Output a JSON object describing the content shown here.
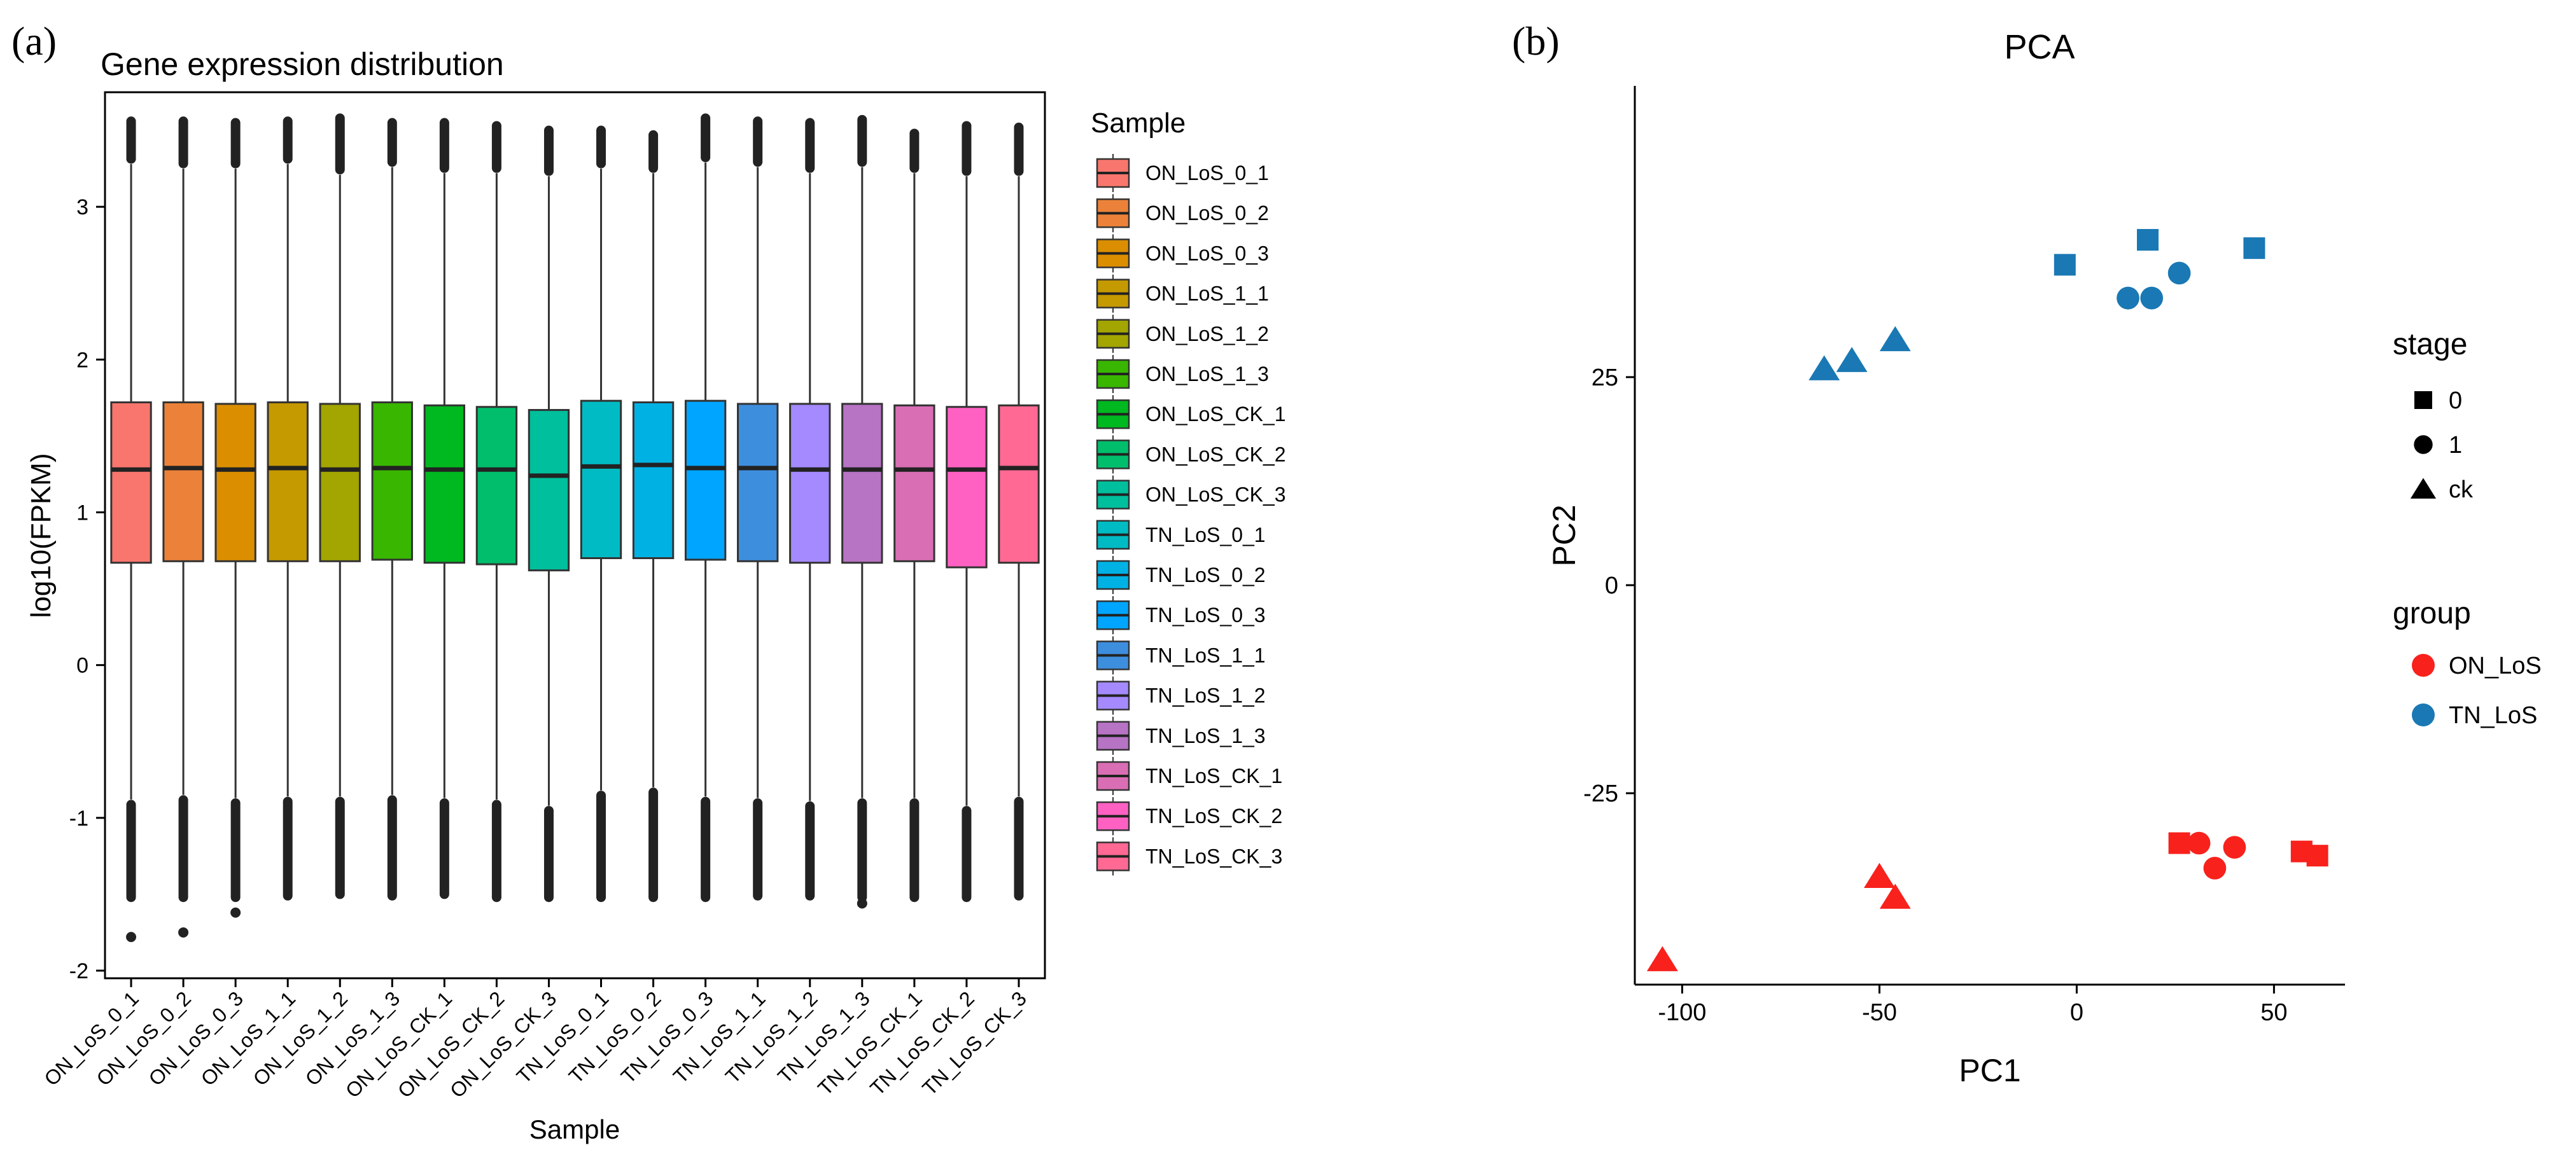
{
  "panel_a_label": "(a)",
  "panel_b_label": "(b)",
  "colors": {
    "on_los": "#F8211C",
    "tn_los": "#1A78B4",
    "axis": "#000000",
    "whisker": "#3a3a3a"
  },
  "chart_data": [
    {
      "type": "box",
      "title": "Gene expression distribution",
      "xlabel": "Sample",
      "ylabel": "log10(FPKM)",
      "ylim": [
        -2.05,
        3.75
      ],
      "yticks": [
        -2,
        -1,
        0,
        1,
        2,
        3
      ],
      "ytick_labels": [
        "-2",
        "-1",
        "0",
        "1",
        "2",
        "3"
      ],
      "legend": {
        "title": "Sample",
        "position": "right"
      },
      "samples": [
        {
          "name": "ON_LoS_0_1",
          "color": "#F8766D",
          "q1": 0.67,
          "median": 1.28,
          "q3": 1.72,
          "lower_whisker": -0.88,
          "upper_whisker": 3.28,
          "outlier_low_min": -1.78,
          "outlier_high_max": 3.56
        },
        {
          "name": "ON_LoS_0_2",
          "color": "#EC8239",
          "q1": 0.68,
          "median": 1.29,
          "q3": 1.72,
          "lower_whisker": -0.85,
          "upper_whisker": 3.25,
          "outlier_low_min": -1.75,
          "outlier_high_max": 3.56
        },
        {
          "name": "ON_LoS_0_3",
          "color": "#DB8E00",
          "q1": 0.68,
          "median": 1.28,
          "q3": 1.71,
          "lower_whisker": -0.87,
          "upper_whisker": 3.25,
          "outlier_low_min": -1.62,
          "outlier_high_max": 3.55
        },
        {
          "name": "ON_LoS_1_1",
          "color": "#C59900",
          "q1": 0.68,
          "median": 1.29,
          "q3": 1.72,
          "lower_whisker": -0.86,
          "upper_whisker": 3.28,
          "outlier_low_min": -1.51,
          "outlier_high_max": 3.56
        },
        {
          "name": "ON_LoS_1_2",
          "color": "#A3A500",
          "q1": 0.68,
          "median": 1.28,
          "q3": 1.71,
          "lower_whisker": -0.86,
          "upper_whisker": 3.21,
          "outlier_low_min": -1.5,
          "outlier_high_max": 3.58
        },
        {
          "name": "ON_LoS_1_3",
          "color": "#39B600",
          "q1": 0.69,
          "median": 1.29,
          "q3": 1.72,
          "lower_whisker": -0.85,
          "upper_whisker": 3.26,
          "outlier_low_min": -1.51,
          "outlier_high_max": 3.55
        },
        {
          "name": "ON_LoS_CK_1",
          "color": "#00B81F",
          "q1": 0.67,
          "median": 1.28,
          "q3": 1.7,
          "lower_whisker": -0.87,
          "upper_whisker": 3.22,
          "outlier_low_min": -1.5,
          "outlier_high_max": 3.55
        },
        {
          "name": "ON_LoS_CK_2",
          "color": "#00BE6C",
          "q1": 0.66,
          "median": 1.28,
          "q3": 1.69,
          "lower_whisker": -0.88,
          "upper_whisker": 3.22,
          "outlier_low_min": -1.53,
          "outlier_high_max": 3.53
        },
        {
          "name": "ON_LoS_CK_3",
          "color": "#00BF9C",
          "q1": 0.62,
          "median": 1.24,
          "q3": 1.67,
          "lower_whisker": -0.92,
          "upper_whisker": 3.2,
          "outlier_low_min": -1.53,
          "outlier_high_max": 3.5
        },
        {
          "name": "TN_LoS_0_1",
          "color": "#00BBC3",
          "q1": 0.7,
          "median": 1.3,
          "q3": 1.73,
          "lower_whisker": -0.82,
          "upper_whisker": 3.25,
          "outlier_low_min": -1.52,
          "outlier_high_max": 3.5
        },
        {
          "name": "TN_LoS_0_2",
          "color": "#00B2E4",
          "q1": 0.7,
          "median": 1.31,
          "q3": 1.72,
          "lower_whisker": -0.8,
          "upper_whisker": 3.22,
          "outlier_low_min": -1.53,
          "outlier_high_max": 3.47
        },
        {
          "name": "TN_LoS_0_3",
          "color": "#00A5FF",
          "q1": 0.69,
          "median": 1.29,
          "q3": 1.73,
          "lower_whisker": -0.86,
          "upper_whisker": 3.29,
          "outlier_low_min": -1.54,
          "outlier_high_max": 3.58
        },
        {
          "name": "TN_LoS_1_1",
          "color": "#3E8EDE",
          "q1": 0.68,
          "median": 1.29,
          "q3": 1.71,
          "lower_whisker": -0.87,
          "upper_whisker": 3.26,
          "outlier_low_min": -1.51,
          "outlier_high_max": 3.56
        },
        {
          "name": "TN_LoS_1_2",
          "color": "#A58AFF",
          "q1": 0.67,
          "median": 1.28,
          "q3": 1.71,
          "lower_whisker": -0.89,
          "upper_whisker": 3.22,
          "outlier_low_min": -1.51,
          "outlier_high_max": 3.55
        },
        {
          "name": "TN_LoS_1_3",
          "color": "#B773C4",
          "q1": 0.67,
          "median": 1.28,
          "q3": 1.71,
          "lower_whisker": -0.87,
          "upper_whisker": 3.26,
          "outlier_low_min": -1.56,
          "outlier_high_max": 3.57
        },
        {
          "name": "TN_LoS_CK_1",
          "color": "#D96EB4",
          "q1": 0.68,
          "median": 1.28,
          "q3": 1.7,
          "lower_whisker": -0.87,
          "upper_whisker": 3.22,
          "outlier_low_min": -1.53,
          "outlier_high_max": 3.48
        },
        {
          "name": "TN_LoS_CK_2",
          "color": "#FF61C3",
          "q1": 0.64,
          "median": 1.28,
          "q3": 1.69,
          "lower_whisker": -0.92,
          "upper_whisker": 3.2,
          "outlier_low_min": -1.53,
          "outlier_high_max": 3.53
        },
        {
          "name": "TN_LoS_CK_3",
          "color": "#FF6993",
          "q1": 0.67,
          "median": 1.29,
          "q3": 1.7,
          "lower_whisker": -0.86,
          "upper_whisker": 3.2,
          "outlier_low_min": -1.51,
          "outlier_high_max": 3.52
        }
      ]
    },
    {
      "type": "scatter",
      "title": "PCA",
      "xlabel": "PC1",
      "ylabel": "PC2",
      "xlim": [
        -112,
        68
      ],
      "ylim": [
        -48,
        60
      ],
      "xticks": [
        -100,
        -50,
        0,
        50
      ],
      "xtick_labels": [
        "-100",
        "-50",
        "0",
        "50"
      ],
      "yticks": [
        -25,
        0,
        25
      ],
      "ytick_labels": [
        "-25",
        "0",
        "25"
      ],
      "legend": {
        "position": "right",
        "stage_title": "stage",
        "stage_items": [
          {
            "label": "0",
            "shape": "square"
          },
          {
            "label": "1",
            "shape": "circle"
          },
          {
            "label": "ck",
            "shape": "triangle"
          }
        ],
        "group_title": "group",
        "group_items": [
          {
            "label": "ON_LoS",
            "color": "#F8211C"
          },
          {
            "label": "TN_LoS",
            "color": "#1A78B4"
          }
        ]
      },
      "points": [
        {
          "x": 18,
          "y": 41.5,
          "group": "TN_LoS",
          "stage": "0"
        },
        {
          "x": 45,
          "y": 40.5,
          "group": "TN_LoS",
          "stage": "0"
        },
        {
          "x": -3,
          "y": 38.5,
          "group": "TN_LoS",
          "stage": "0"
        },
        {
          "x": 26,
          "y": 37.5,
          "group": "TN_LoS",
          "stage": "1"
        },
        {
          "x": 13,
          "y": 34.5,
          "group": "TN_LoS",
          "stage": "1"
        },
        {
          "x": 19,
          "y": 34.5,
          "group": "TN_LoS",
          "stage": "1"
        },
        {
          "x": -46,
          "y": 29.5,
          "group": "TN_LoS",
          "stage": "ck"
        },
        {
          "x": -57,
          "y": 27.0,
          "group": "TN_LoS",
          "stage": "ck"
        },
        {
          "x": -64,
          "y": 26.0,
          "group": "TN_LoS",
          "stage": "ck"
        },
        {
          "x": 26,
          "y": -31.0,
          "group": "ON_LoS",
          "stage": "0"
        },
        {
          "x": 57,
          "y": -32.0,
          "group": "ON_LoS",
          "stage": "0"
        },
        {
          "x": 61,
          "y": -32.5,
          "group": "ON_LoS",
          "stage": "0"
        },
        {
          "x": 31,
          "y": -31.0,
          "group": "ON_LoS",
          "stage": "1"
        },
        {
          "x": 40,
          "y": -31.5,
          "group": "ON_LoS",
          "stage": "1"
        },
        {
          "x": 35,
          "y": -34.0,
          "group": "ON_LoS",
          "stage": "1"
        },
        {
          "x": -50,
          "y": -35.0,
          "group": "ON_LoS",
          "stage": "ck"
        },
        {
          "x": -46,
          "y": -37.5,
          "group": "ON_LoS",
          "stage": "ck"
        },
        {
          "x": -105,
          "y": -45.0,
          "group": "ON_LoS",
          "stage": "ck"
        }
      ]
    }
  ]
}
